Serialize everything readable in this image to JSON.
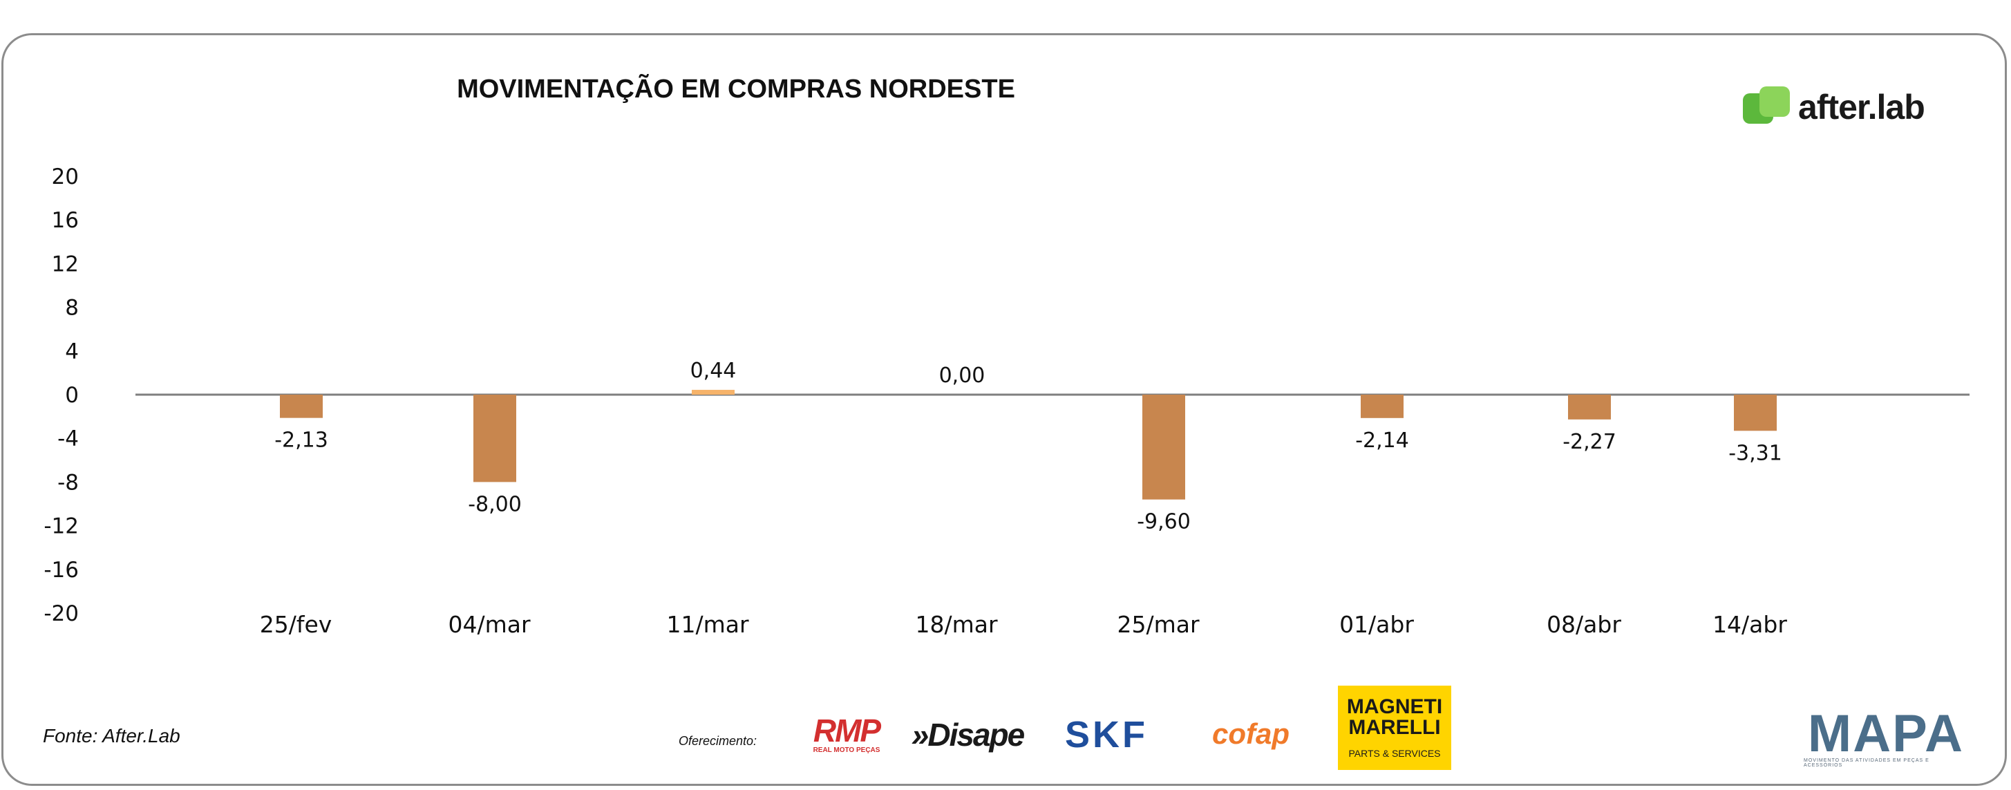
{
  "header": {
    "title": "MOVIMENTAÇÃO EM COMPRAS NORDESTE",
    "brand": "after.lab"
  },
  "footer": {
    "source": "Fonte: After.Lab",
    "offer_label": "Oferecimento:",
    "sponsors": {
      "rmp": "RMP",
      "rmp_sub": "REAL MOTO PEÇAS",
      "disape": "»Disape",
      "skf": "SKF",
      "cofap": "cofap",
      "magneti": "MAGNETI MARELLI",
      "magneti_sub": "PARTS & SERVICES",
      "mapa": "MAPA",
      "mapa_sub": "MOVIMENTO DAS ATIVIDADES EM PEÇAS E ACESSÓRIOS"
    }
  },
  "chart_data": {
    "type": "bar",
    "title": "MOVIMENTAÇÃO EM COMPRAS NORDESTE",
    "xlabel": "",
    "ylabel": "",
    "categories": [
      "25/fev",
      "04/mar",
      "11/mar",
      "18/mar",
      "25/mar",
      "01/abr",
      "08/abr",
      "14/abr"
    ],
    "values": [
      -2.13,
      -8.0,
      0.44,
      0.0,
      -9.6,
      -2.14,
      -2.27,
      -3.31
    ],
    "data_labels": [
      "-2,13",
      "-8,00",
      "0,44",
      "0,00",
      "-9,60",
      "-2,14",
      "-2,27",
      "-3,31"
    ],
    "ylim": [
      -20,
      20
    ],
    "yticks": [
      20,
      16,
      12,
      8,
      4,
      0,
      -4,
      -8,
      -12,
      -16,
      -20
    ],
    "colors": {
      "negative": "#c8864e",
      "positive": "#f6b36a",
      "zero_line": "#7f7f7f"
    },
    "grid": false,
    "legend": "none"
  }
}
